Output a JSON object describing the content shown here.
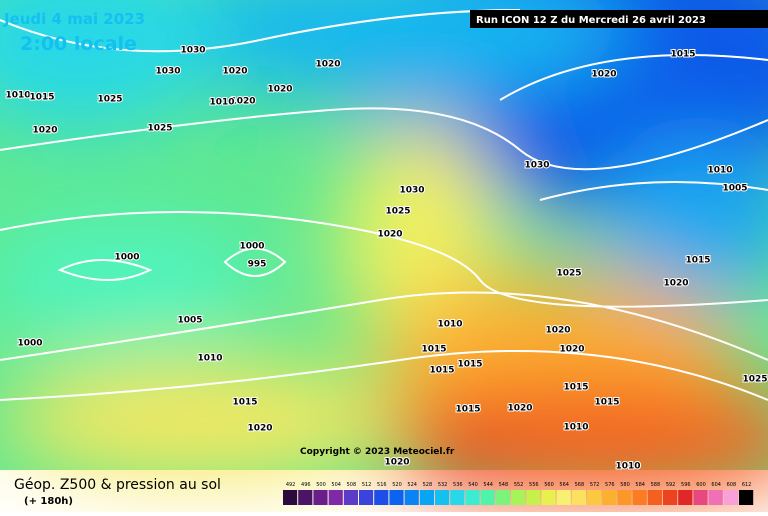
{
  "header": {
    "date": "Jeudi 4 mai 2023",
    "time": "2:00 locale",
    "run": "Run ICON 12 Z du Mercredi 26 avril 2023"
  },
  "footer": {
    "title": "Géop. Z500 & pression au sol",
    "lead": "(+ 180h)",
    "copyright": "Copyright © 2023 Meteociel.fr"
  },
  "legend": {
    "values": [
      492,
      496,
      500,
      504,
      508,
      512,
      516,
      520,
      524,
      528,
      532,
      536,
      540,
      544,
      548,
      552,
      556,
      560,
      564,
      568,
      572,
      576,
      580,
      584,
      588,
      592,
      596,
      600,
      604,
      608,
      612
    ],
    "colors": [
      "#2b0a3d",
      "#4b1466",
      "#6a1e8c",
      "#7e2aa8",
      "#5a3cc8",
      "#3a44dc",
      "#1e4ee8",
      "#0a64f0",
      "#0a84f4",
      "#0aa4f4",
      "#14c0f0",
      "#28d8e8",
      "#3cecd0",
      "#50f4a8",
      "#7cf47c",
      "#a4f45a",
      "#c8f04a",
      "#e8f050",
      "#f8f070",
      "#fce060",
      "#fcc840",
      "#fcb030",
      "#fc9828",
      "#fc7c24",
      "#f46020",
      "#ec4420",
      "#e02828",
      "#e84880",
      "#f070b8",
      "#f8a0d8",
      "#000000"
    ]
  },
  "pressure_labels": [
    "1030",
    "1030",
    "1020",
    "1020",
    "1015",
    "1020",
    "1010",
    "1015",
    "1025",
    "1020",
    "1020",
    "1010",
    "1020",
    "1025",
    "1030",
    "1010",
    "1005",
    "1030",
    "1025",
    "1020",
    "1000",
    "995",
    "1000",
    "1015",
    "1025",
    "1020",
    "1005",
    "1010",
    "1020",
    "1000",
    "1015",
    "1020",
    "1010",
    "1015",
    "1015",
    "1025",
    "1015",
    "1015",
    "1015",
    "1015",
    "1020",
    "1010",
    "1020",
    "1020",
    "1010"
  ]
}
